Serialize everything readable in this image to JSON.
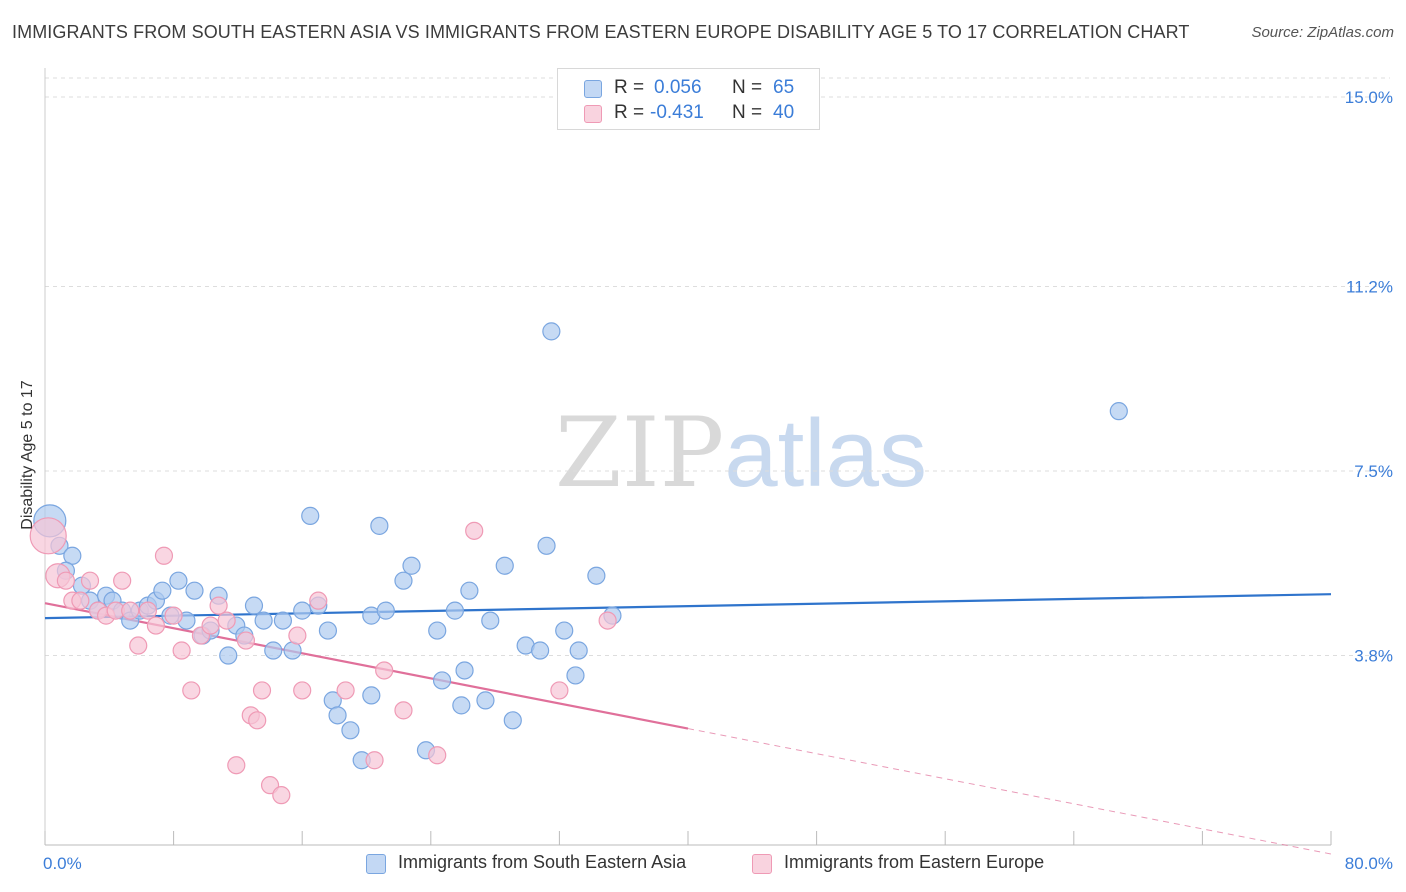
{
  "title": "IMMIGRANTS FROM SOUTH EASTERN ASIA VS IMMIGRANTS FROM EASTERN EUROPE DISABILITY AGE 5 TO 17 CORRELATION CHART",
  "source": "Source: ZipAtlas.com",
  "watermark": {
    "zip": "ZIP",
    "atlas": "atlas"
  },
  "legend": {
    "r_label": "R =",
    "n_label": "N =",
    "rows": [
      {
        "r": "0.056",
        "n": "65"
      },
      {
        "r": "-0.431",
        "n": "40"
      }
    ]
  },
  "colors": {
    "blue_fill": "#aecbef",
    "blue_stroke": "#7aa6e0",
    "blue_line": "#2f74cc",
    "pink_fill": "#f7c5d5",
    "pink_stroke": "#ef9ab5",
    "pink_line": "#e0709a",
    "grid": "#dddddd",
    "axis_text": "#3b7dd8"
  },
  "chart_data": {
    "type": "scatter",
    "title": "IMMIGRANTS FROM SOUTH EASTERN ASIA VS IMMIGRANTS FROM EASTERN EUROPE DISABILITY AGE 5 TO 17 CORRELATION CHART",
    "xlabel": "",
    "ylabel": "Disability Age 5 to 17",
    "xlim": [
      0,
      80
    ],
    "ylim": [
      0,
      15.5
    ],
    "x_tick_labels": [
      "0.0%",
      "80.0%"
    ],
    "y_ticks": [
      3.8,
      7.5,
      11.2,
      15.0
    ],
    "y_tick_labels": [
      "3.8%",
      "7.5%",
      "11.2%",
      "15.0%"
    ],
    "legend_position": "top-center",
    "grid": true,
    "series": [
      {
        "name": "Immigrants from South Eastern Asia",
        "color": "blue",
        "R": 0.056,
        "N": 65,
        "trend": {
          "x": [
            0,
            80
          ],
          "y": [
            4.55,
            5.03
          ],
          "solid_until": 80
        },
        "points": [
          [
            0.3,
            6.5
          ],
          [
            0.9,
            6.0
          ],
          [
            1.7,
            5.8
          ],
          [
            1.3,
            5.5
          ],
          [
            2.3,
            5.2
          ],
          [
            2.8,
            4.9
          ],
          [
            3.3,
            4.7
          ],
          [
            3.8,
            5.0
          ],
          [
            4.2,
            4.9
          ],
          [
            4.8,
            4.7
          ],
          [
            5.3,
            4.5
          ],
          [
            5.9,
            4.7
          ],
          [
            6.4,
            4.8
          ],
          [
            6.9,
            4.9
          ],
          [
            7.3,
            5.1
          ],
          [
            7.8,
            4.6
          ],
          [
            8.3,
            5.3
          ],
          [
            8.8,
            4.5
          ],
          [
            9.3,
            5.1
          ],
          [
            9.8,
            4.2
          ],
          [
            10.3,
            4.3
          ],
          [
            10.8,
            5.0
          ],
          [
            11.4,
            3.8
          ],
          [
            11.9,
            4.4
          ],
          [
            12.4,
            4.2
          ],
          [
            13.0,
            4.8
          ],
          [
            13.6,
            4.5
          ],
          [
            14.2,
            3.9
          ],
          [
            14.8,
            4.5
          ],
          [
            15.4,
            3.9
          ],
          [
            16.0,
            4.7
          ],
          [
            16.5,
            6.6
          ],
          [
            17.0,
            4.8
          ],
          [
            17.6,
            4.3
          ],
          [
            17.9,
            2.9
          ],
          [
            18.2,
            2.6
          ],
          [
            19.0,
            2.3
          ],
          [
            19.7,
            1.7
          ],
          [
            20.3,
            4.6
          ],
          [
            20.3,
            3.0
          ],
          [
            20.8,
            6.4
          ],
          [
            21.2,
            4.7
          ],
          [
            22.3,
            5.3
          ],
          [
            22.8,
            5.6
          ],
          [
            23.7,
            1.9
          ],
          [
            24.4,
            4.3
          ],
          [
            24.7,
            3.3
          ],
          [
            25.5,
            4.7
          ],
          [
            25.9,
            2.8
          ],
          [
            26.1,
            3.5
          ],
          [
            26.4,
            5.1
          ],
          [
            27.4,
            2.9
          ],
          [
            27.7,
            4.5
          ],
          [
            28.6,
            5.6
          ],
          [
            29.1,
            2.5
          ],
          [
            29.9,
            4.0
          ],
          [
            30.8,
            3.9
          ],
          [
            31.2,
            6.0
          ],
          [
            32.3,
            4.3
          ],
          [
            33.0,
            3.4
          ],
          [
            33.2,
            3.9
          ],
          [
            34.3,
            5.4
          ],
          [
            35.3,
            4.6
          ],
          [
            31.5,
            10.3
          ],
          [
            66.8,
            8.7
          ]
        ]
      },
      {
        "name": "Immigrants from Eastern Europe",
        "color": "pink",
        "R": -0.431,
        "N": 40,
        "trend": {
          "x": [
            0,
            80
          ],
          "y": [
            4.85,
            -0.18
          ],
          "solid_until": 40
        },
        "points": [
          [
            0.2,
            6.2
          ],
          [
            0.8,
            5.4
          ],
          [
            1.3,
            5.3
          ],
          [
            1.7,
            4.9
          ],
          [
            2.2,
            4.9
          ],
          [
            2.8,
            5.3
          ],
          [
            3.3,
            4.7
          ],
          [
            3.8,
            4.6
          ],
          [
            4.4,
            4.7
          ],
          [
            4.8,
            5.3
          ],
          [
            5.3,
            4.7
          ],
          [
            5.8,
            4.0
          ],
          [
            6.4,
            4.7
          ],
          [
            6.9,
            4.4
          ],
          [
            7.4,
            5.8
          ],
          [
            8.0,
            4.6
          ],
          [
            8.5,
            3.9
          ],
          [
            9.1,
            3.1
          ],
          [
            9.7,
            4.2
          ],
          [
            10.3,
            4.4
          ],
          [
            10.8,
            4.8
          ],
          [
            11.3,
            4.5
          ],
          [
            11.9,
            1.6
          ],
          [
            12.5,
            4.1
          ],
          [
            12.8,
            2.6
          ],
          [
            13.2,
            2.5
          ],
          [
            13.5,
            3.1
          ],
          [
            14.0,
            1.2
          ],
          [
            14.7,
            1.0
          ],
          [
            15.7,
            4.2
          ],
          [
            16.0,
            3.1
          ],
          [
            17.0,
            4.9
          ],
          [
            18.7,
            3.1
          ],
          [
            20.5,
            1.7
          ],
          [
            21.1,
            3.5
          ],
          [
            22.3,
            2.7
          ],
          [
            24.4,
            1.8
          ],
          [
            26.7,
            6.3
          ],
          [
            32.0,
            3.1
          ],
          [
            35.0,
            4.5
          ]
        ]
      }
    ]
  }
}
